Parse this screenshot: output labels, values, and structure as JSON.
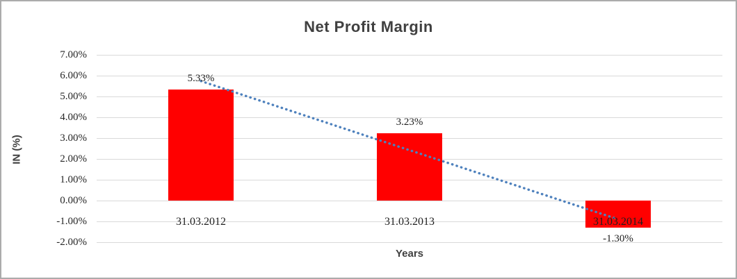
{
  "chart_data": {
    "type": "bar",
    "title": "Net Profit Margin",
    "xlabel": "Years",
    "ylabel": "IN (%)",
    "categories": [
      "31.03.2012",
      "31.03.2013",
      "31.03.2014"
    ],
    "values": [
      5.33,
      3.23,
      -1.3
    ],
    "data_labels": [
      "5.33%",
      "3.23%",
      "-1.30%"
    ],
    "ylim": [
      -2,
      7
    ],
    "ytick_step": 1,
    "ytick_labels": [
      "7.00%",
      "6.00%",
      "5.00%",
      "4.00%",
      "3.00%",
      "2.00%",
      "1.00%",
      "0.00%",
      "-1.00%",
      "-2.00%"
    ],
    "grid": true,
    "legend": "none",
    "bar_color": "#ff0000",
    "gridline_color": "#d9d9d9",
    "text_color": "#262626",
    "title_color": "#404040",
    "trendline": {
      "type": "linear",
      "style": "dotted",
      "color": "#4e81bd",
      "start_value": 5.74,
      "end_value": -0.9
    }
  }
}
